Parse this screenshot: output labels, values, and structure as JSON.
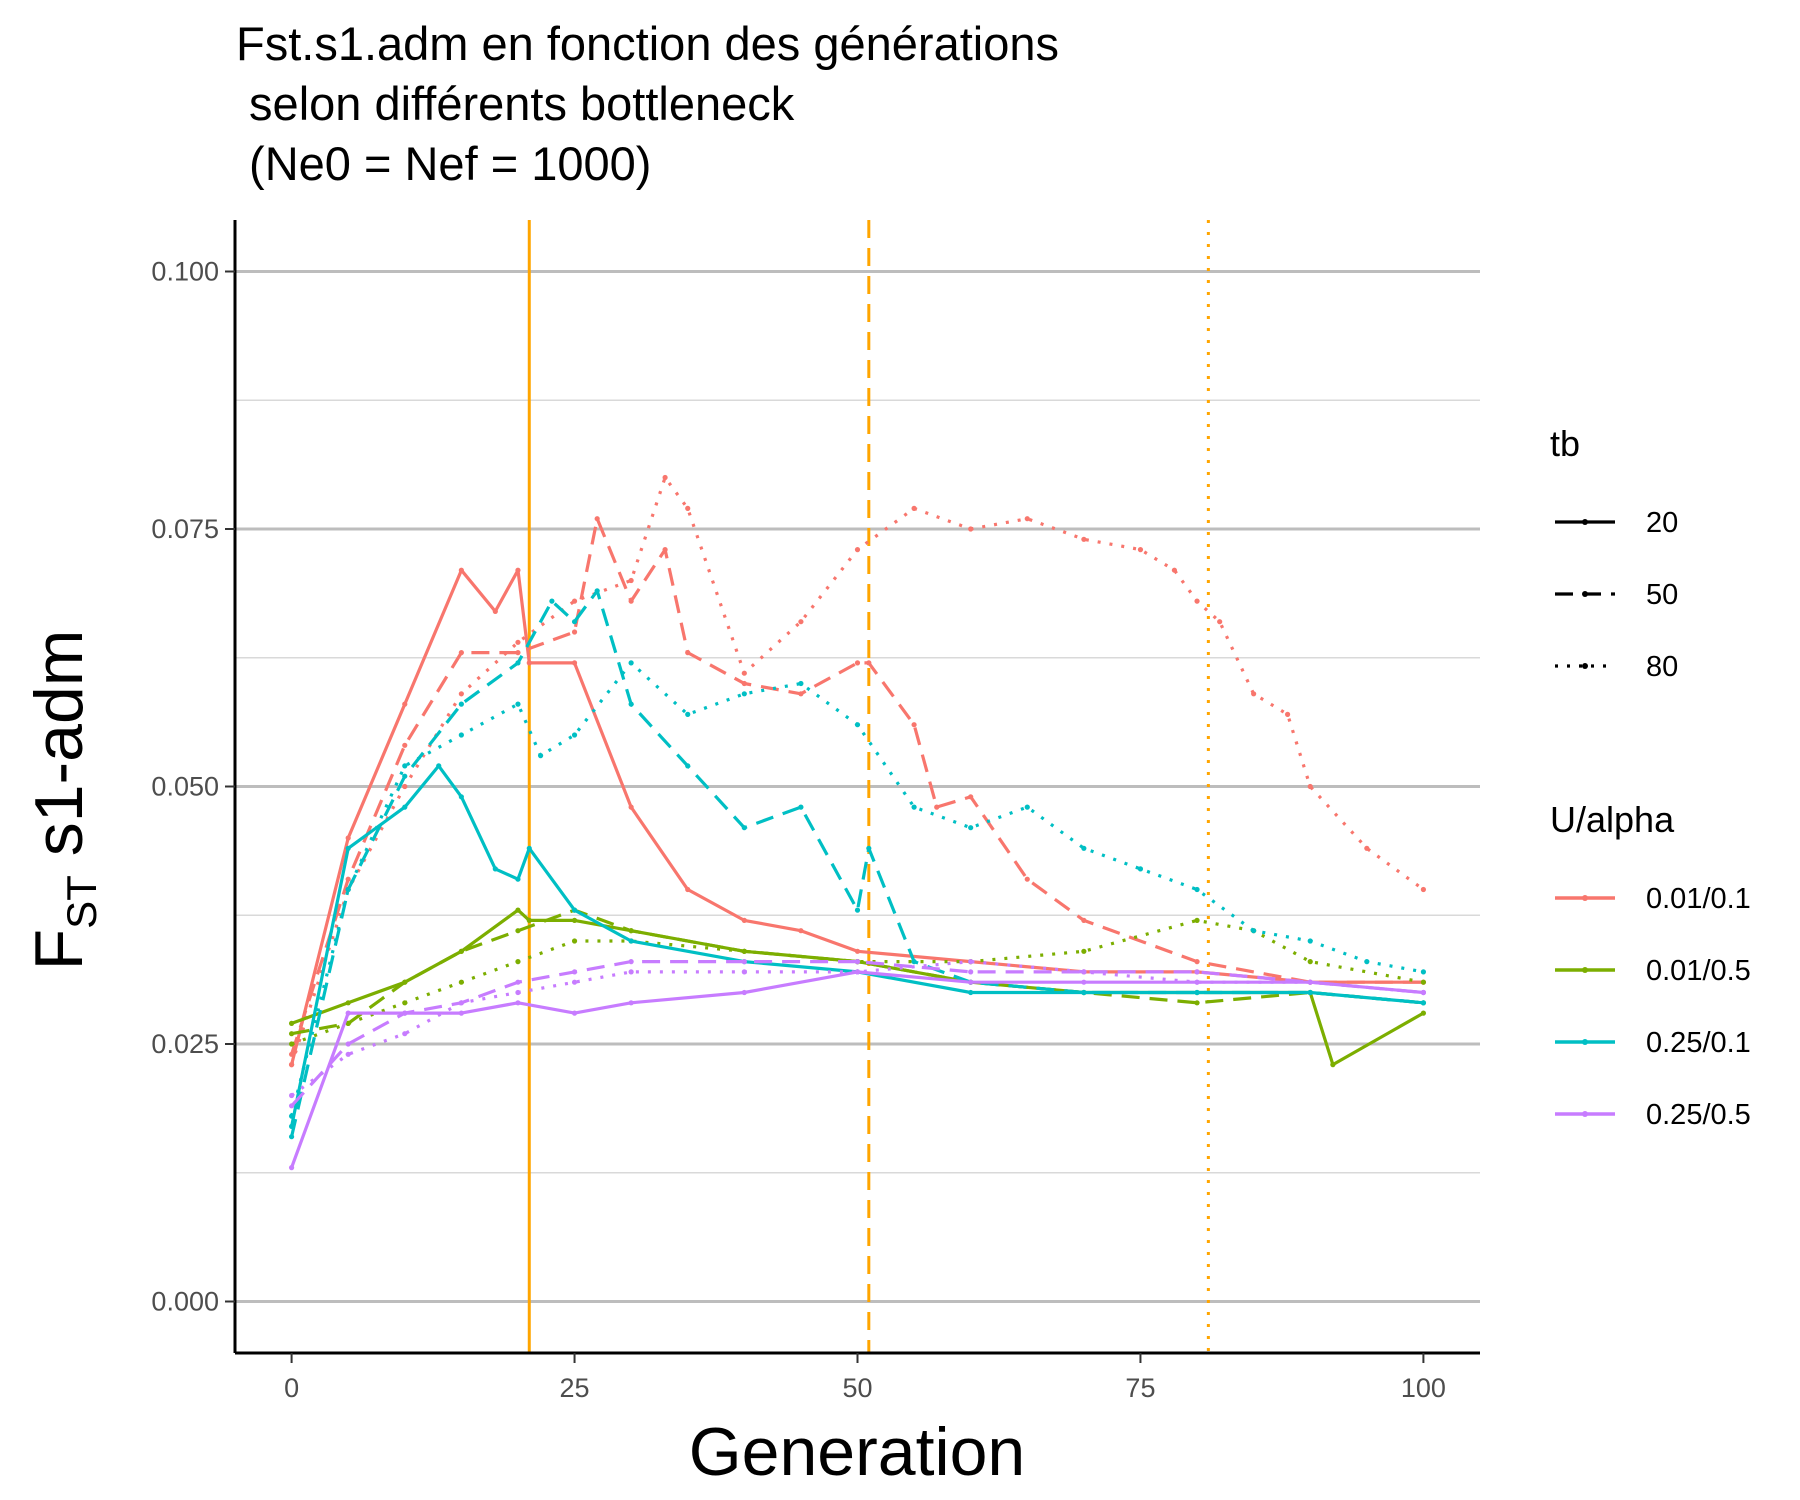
{
  "chart_data": {
    "type": "line",
    "title_lines": [
      "Fst.s1.adm en fonction des générations",
      " selon différents bottleneck",
      " (Ne0 = Nef = 1000)"
    ],
    "xlabel": "Generation",
    "ylabel_main": "F",
    "ylabel_sub": "ST",
    "ylabel_rest": " s1-adm",
    "xlim": [
      -5,
      105
    ],
    "ylim": [
      -0.005,
      0.105
    ],
    "x_ticks": [
      0,
      25,
      50,
      75,
      100
    ],
    "x_tick_labels": [
      "0",
      "25",
      "50",
      "75",
      "100"
    ],
    "y_ticks": [
      0.0,
      0.025,
      0.05,
      0.075,
      0.1
    ],
    "y_tick_labels": [
      "0.000",
      "0.025",
      "0.050",
      "0.075",
      "0.100"
    ],
    "grid": "horizontal",
    "legend_position": "right",
    "legend_tb": {
      "title": "tb",
      "items": [
        {
          "label": "20",
          "dash": "solid"
        },
        {
          "label": "50",
          "dash": "dashed"
        },
        {
          "label": "80",
          "dash": "dotted"
        }
      ]
    },
    "legend_ua": {
      "title": "U/alpha",
      "items": [
        {
          "label": "0.01/0.1",
          "color": "#F8766D"
        },
        {
          "label": "0.01/0.5",
          "color": "#7CAE00"
        },
        {
          "label": "0.25/0.1",
          "color": "#00BFC4"
        },
        {
          "label": "0.25/0.5",
          "color": "#C77CFF"
        }
      ]
    },
    "vlines": [
      {
        "x": 21,
        "dash": "solid",
        "color": "#FFA500"
      },
      {
        "x": 51,
        "dash": "dashed",
        "color": "#FFA500"
      },
      {
        "x": 81,
        "dash": "dotted",
        "color": "#FFA500"
      }
    ],
    "series": [
      {
        "ua": "0.01/0.1",
        "tb": "20",
        "color": "#F8766D",
        "dash": "solid",
        "x": [
          0,
          5,
          10,
          15,
          18,
          20,
          21,
          25,
          30,
          35,
          40,
          45,
          50,
          60,
          70,
          80,
          90,
          100
        ],
        "y": [
          0.023,
          0.045,
          0.058,
          0.071,
          0.067,
          0.071,
          0.062,
          0.062,
          0.048,
          0.04,
          0.037,
          0.036,
          0.034,
          0.033,
          0.032,
          0.032,
          0.031,
          0.031
        ]
      },
      {
        "ua": "0.01/0.1",
        "tb": "50",
        "color": "#F8766D",
        "dash": "dashed",
        "x": [
          0,
          5,
          10,
          15,
          20,
          25,
          27,
          30,
          33,
          35,
          40,
          45,
          50,
          51,
          55,
          57,
          60,
          65,
          70,
          80,
          90,
          100
        ],
        "y": [
          0.024,
          0.041,
          0.054,
          0.063,
          0.063,
          0.065,
          0.076,
          0.068,
          0.073,
          0.063,
          0.06,
          0.059,
          0.062,
          0.062,
          0.056,
          0.048,
          0.049,
          0.041,
          0.037,
          0.033,
          0.031,
          0.031
        ]
      },
      {
        "ua": "0.01/0.1",
        "tb": "80",
        "color": "#F8766D",
        "dash": "dotted",
        "x": [
          0,
          5,
          10,
          15,
          20,
          25,
          30,
          33,
          35,
          40,
          45,
          50,
          55,
          60,
          65,
          70,
          75,
          78,
          80,
          82,
          85,
          88,
          90,
          95,
          100
        ],
        "y": [
          0.023,
          0.04,
          0.05,
          0.059,
          0.064,
          0.068,
          0.07,
          0.08,
          0.077,
          0.061,
          0.066,
          0.073,
          0.077,
          0.075,
          0.076,
          0.074,
          0.073,
          0.071,
          0.068,
          0.066,
          0.059,
          0.057,
          0.05,
          0.044,
          0.04
        ]
      },
      {
        "ua": "0.01/0.5",
        "tb": "20",
        "color": "#7CAE00",
        "dash": "solid",
        "x": [
          0,
          5,
          10,
          15,
          20,
          21,
          25,
          30,
          40,
          50,
          60,
          70,
          80,
          90,
          92,
          100
        ],
        "y": [
          0.027,
          0.029,
          0.031,
          0.034,
          0.038,
          0.037,
          0.037,
          0.036,
          0.034,
          0.033,
          0.031,
          0.03,
          0.03,
          0.03,
          0.023,
          0.028
        ]
      },
      {
        "ua": "0.01/0.5",
        "tb": "50",
        "color": "#7CAE00",
        "dash": "dashed",
        "x": [
          0,
          5,
          10,
          15,
          20,
          25,
          30,
          40,
          50,
          60,
          70,
          80,
          90,
          100
        ],
        "y": [
          0.026,
          0.027,
          0.031,
          0.034,
          0.036,
          0.038,
          0.036,
          0.034,
          0.033,
          0.031,
          0.03,
          0.029,
          0.03,
          0.029
        ]
      },
      {
        "ua": "0.01/0.5",
        "tb": "80",
        "color": "#7CAE00",
        "dash": "dotted",
        "x": [
          0,
          5,
          10,
          15,
          20,
          25,
          30,
          40,
          50,
          60,
          70,
          80,
          85,
          90,
          100
        ],
        "y": [
          0.025,
          0.027,
          0.029,
          0.031,
          0.033,
          0.035,
          0.035,
          0.034,
          0.033,
          0.033,
          0.034,
          0.037,
          0.036,
          0.033,
          0.031
        ]
      },
      {
        "ua": "0.25/0.1",
        "tb": "20",
        "color": "#00BFC4",
        "dash": "solid",
        "x": [
          0,
          5,
          10,
          13,
          15,
          18,
          20,
          21,
          25,
          30,
          40,
          50,
          60,
          70,
          80,
          90,
          100
        ],
        "y": [
          0.017,
          0.044,
          0.048,
          0.052,
          0.049,
          0.042,
          0.041,
          0.044,
          0.038,
          0.035,
          0.033,
          0.032,
          0.03,
          0.03,
          0.03,
          0.03,
          0.029
        ]
      },
      {
        "ua": "0.25/0.1",
        "tb": "50",
        "color": "#00BFC4",
        "dash": "dashed",
        "x": [
          0,
          5,
          10,
          15,
          20,
          23,
          25,
          27,
          30,
          35,
          40,
          45,
          50,
          51,
          55,
          60,
          70,
          80,
          90,
          100
        ],
        "y": [
          0.016,
          0.04,
          0.051,
          0.058,
          0.062,
          0.068,
          0.066,
          0.069,
          0.058,
          0.052,
          0.046,
          0.048,
          0.038,
          0.044,
          0.033,
          0.031,
          0.03,
          0.03,
          0.03,
          0.029
        ]
      },
      {
        "ua": "0.25/0.1",
        "tb": "80",
        "color": "#00BFC4",
        "dash": "dotted",
        "x": [
          0,
          5,
          10,
          15,
          20,
          22,
          25,
          30,
          35,
          40,
          45,
          50,
          55,
          60,
          65,
          70,
          75,
          80,
          85,
          90,
          95,
          100
        ],
        "y": [
          0.018,
          0.04,
          0.052,
          0.055,
          0.058,
          0.053,
          0.055,
          0.062,
          0.057,
          0.059,
          0.06,
          0.056,
          0.048,
          0.046,
          0.048,
          0.044,
          0.042,
          0.04,
          0.036,
          0.035,
          0.033,
          0.032
        ]
      },
      {
        "ua": "0.25/0.5",
        "tb": "20",
        "color": "#C77CFF",
        "dash": "solid",
        "x": [
          0,
          5,
          10,
          15,
          20,
          25,
          30,
          40,
          50,
          60,
          70,
          80,
          90,
          100
        ],
        "y": [
          0.013,
          0.028,
          0.028,
          0.028,
          0.029,
          0.028,
          0.029,
          0.03,
          0.032,
          0.031,
          0.031,
          0.031,
          0.031,
          0.03
        ]
      },
      {
        "ua": "0.25/0.5",
        "tb": "50",
        "color": "#C77CFF",
        "dash": "dashed",
        "x": [
          0,
          5,
          10,
          15,
          20,
          25,
          30,
          40,
          50,
          60,
          70,
          80,
          90,
          100
        ],
        "y": [
          0.019,
          0.025,
          0.028,
          0.029,
          0.031,
          0.032,
          0.033,
          0.033,
          0.033,
          0.032,
          0.032,
          0.032,
          0.031,
          0.03
        ]
      },
      {
        "ua": "0.25/0.5",
        "tb": "80",
        "color": "#C77CFF",
        "dash": "dotted",
        "x": [
          0,
          5,
          10,
          15,
          20,
          25,
          30,
          40,
          50,
          60,
          70,
          80,
          90,
          100
        ],
        "y": [
          0.02,
          0.024,
          0.026,
          0.029,
          0.03,
          0.031,
          0.032,
          0.032,
          0.032,
          0.033,
          0.032,
          0.031,
          0.031,
          0.03
        ]
      }
    ]
  }
}
